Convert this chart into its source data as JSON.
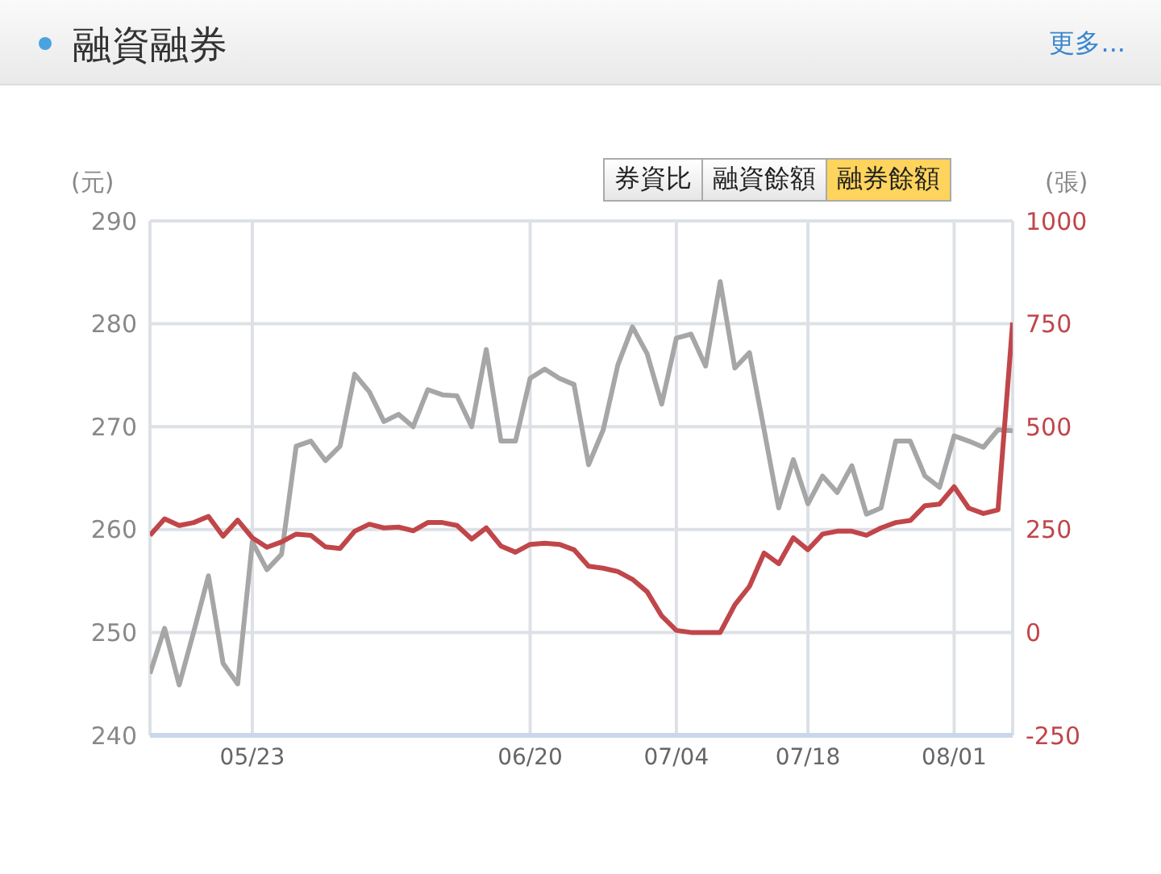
{
  "chart_data": {
    "type": "line",
    "title": "融資融券",
    "annotations": [
      "更多...",
      "券資比",
      "融資餘額",
      "融券餘額"
    ],
    "ylabel": "(元)",
    "y2label": "(張)",
    "categories": [
      null,
      null,
      null,
      null,
      null,
      null,
      null,
      "05/23",
      null,
      null,
      null,
      null,
      null,
      null,
      null,
      null,
      null,
      null,
      null,
      null,
      null,
      null,
      null,
      null,
      null,
      null,
      "06/20",
      null,
      null,
      null,
      null,
      null,
      null,
      null,
      null,
      null,
      "07/04",
      null,
      null,
      null,
      null,
      null,
      null,
      null,
      null,
      "07/18",
      null,
      null,
      null,
      null,
      null,
      null,
      null,
      null,
      null,
      "08/01",
      null,
      null,
      null,
      null
    ],
    "series": [
      {
        "color": "#a6a6a6",
        "values": [
          246,
          250.4,
          244.9,
          250.1,
          255.5,
          247,
          245,
          258.8,
          256.1,
          257.6,
          268.1,
          268.6,
          266.7,
          268.1,
          275.1,
          273.4,
          270.5,
          271.2,
          270,
          273.6,
          273.1,
          273,
          270,
          277.5,
          268.6,
          268.6,
          274.7,
          275.6,
          274.7,
          274.1,
          266.3,
          269.7,
          276,
          279.7,
          277.1,
          272.2,
          278.6,
          279,
          275.9,
          284.1,
          275.7,
          277.2,
          269.7,
          262.1,
          266.8,
          262.5,
          265.2,
          263.6,
          266.2,
          261.5,
          262.1,
          268.6,
          268.6,
          265.2,
          264.1,
          269.1,
          268.6,
          268,
          269.7,
          269.6
        ]
      },
      {
        "color": "#c0464a",
        "axis": "y2",
        "values": [
          236,
          276,
          260,
          267,
          282,
          234,
          273,
          230,
          207,
          220,
          239,
          236,
          208,
          204,
          246,
          263,
          254,
          256,
          247,
          267,
          267,
          260,
          227,
          254,
          210,
          195,
          214,
          217,
          214,
          201,
          161,
          156,
          148,
          129,
          99,
          40,
          5,
          0,
          0,
          0,
          67,
          112,
          193,
          167,
          230,
          201,
          239,
          246,
          246,
          236,
          254,
          267,
          272,
          308,
          312,
          354,
          302,
          289,
          298,
          753
        ]
      }
    ],
    "ylim": [
      240,
      290
    ],
    "yticks": [
      240,
      250,
      260,
      270,
      280,
      290
    ],
    "y2lim": [
      -250,
      1000
    ],
    "y2ticks": [
      -250,
      0,
      250,
      500,
      750,
      1000
    ],
    "grid": true,
    "marker": "none",
    "line_style": "solid"
  }
}
